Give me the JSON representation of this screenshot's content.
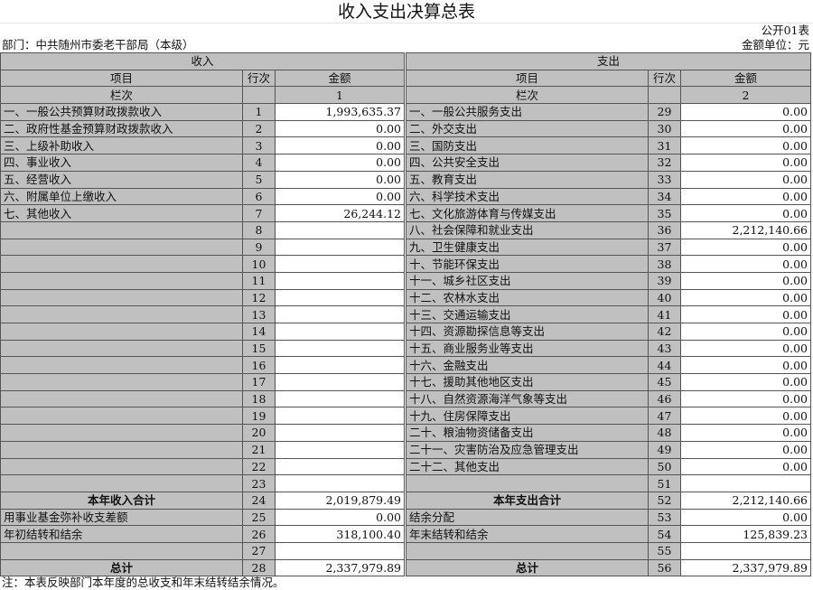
{
  "title": "收入支出决算总表",
  "form_no": "公开01表",
  "department": "部门：中共随州市委老干部局（本级）",
  "unit": "金额单位：元",
  "income_header": "收入",
  "expense_header": "支出",
  "col_item": "项目",
  "col_row": "行次",
  "col_amount": "金额",
  "col_index": "栏次",
  "income_col_no": "1",
  "expense_col_no": "2",
  "rows": [
    [
      "一、一般公共预算财政拨款收入",
      "1",
      "1,993,635.37",
      "一、一般公共服务支出",
      "29",
      "0.00"
    ],
    [
      "二、政府性基金预算财政拨款收入",
      "2",
      "0.00",
      "二、外交支出",
      "30",
      "0.00"
    ],
    [
      "三、上级补助收入",
      "3",
      "0.00",
      "三、国防支出",
      "31",
      "0.00"
    ],
    [
      "四、事业收入",
      "4",
      "0.00",
      "四、公共安全支出",
      "32",
      "0.00"
    ],
    [
      "五、经营收入",
      "5",
      "0.00",
      "五、教育支出",
      "33",
      "0.00"
    ],
    [
      "六、附属单位上缴收入",
      "6",
      "0.00",
      "六、科学技术支出",
      "34",
      "0.00"
    ],
    [
      "七、其他收入",
      "7",
      "26,244.12",
      "七、文化旅游体育与传媒支出",
      "35",
      "0.00"
    ],
    [
      "",
      "8",
      "",
      "八、社会保障和就业支出",
      "36",
      "2,212,140.66"
    ],
    [
      "",
      "9",
      "",
      "九、卫生健康支出",
      "37",
      "0.00"
    ],
    [
      "",
      "10",
      "",
      "十、节能环保支出",
      "38",
      "0.00"
    ],
    [
      "",
      "11",
      "",
      "十一、城乡社区支出",
      "39",
      "0.00"
    ],
    [
      "",
      "12",
      "",
      "十二、农林水支出",
      "40",
      "0.00"
    ],
    [
      "",
      "13",
      "",
      "十三、交通运输支出",
      "41",
      "0.00"
    ],
    [
      "",
      "14",
      "",
      "十四、资源勘探信息等支出",
      "42",
      "0.00"
    ],
    [
      "",
      "15",
      "",
      "十五、商业服务业等支出",
      "43",
      "0.00"
    ],
    [
      "",
      "16",
      "",
      "十六、金融支出",
      "44",
      "0.00"
    ],
    [
      "",
      "17",
      "",
      "十七、援助其他地区支出",
      "45",
      "0.00"
    ],
    [
      "",
      "18",
      "",
      "十八、自然资源海洋气象等支出",
      "46",
      "0.00"
    ],
    [
      "",
      "19",
      "",
      "十九、住房保障支出",
      "47",
      "0.00"
    ],
    [
      "",
      "20",
      "",
      "二十、粮油物资储备支出",
      "48",
      "0.00"
    ],
    [
      "",
      "21",
      "",
      "二十一、灾害防治及应急管理支出",
      "49",
      "0.00"
    ],
    [
      "",
      "22",
      "",
      "二十二、其他支出",
      "50",
      "0.00"
    ],
    [
      "",
      "23",
      "",
      "",
      "51",
      ""
    ],
    [
      "本年收入合计",
      "24",
      "2,019,879.49",
      "本年支出合计",
      "52",
      "2,212,140.66"
    ],
    [
      "用事业基金弥补收支差额",
      "25",
      "0.00",
      "结余分配",
      "53",
      "0.00"
    ],
    [
      "年初结转和结余",
      "26",
      "318,100.40",
      "年末结转和结余",
      "54",
      "125,839.23"
    ],
    [
      "",
      "27",
      "",
      "",
      "55",
      ""
    ],
    [
      "总计",
      "28",
      "2,337,979.89",
      "总计",
      "56",
      "2,337,979.89"
    ]
  ],
  "bold_rows": [
    23,
    27
  ],
  "note": "注：本表反映部门本年度的总收支和年末结转结余情况。"
}
